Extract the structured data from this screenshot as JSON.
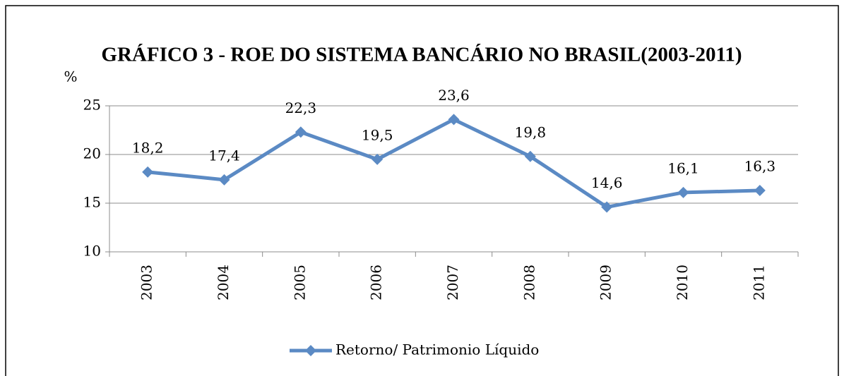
{
  "chart_data": {
    "type": "line",
    "title": "GRÁFICO 3 - ROE DO SISTEMA BANCÁRIO NO BRASIL(2003-2011)",
    "y_label": "%",
    "categories": [
      "2003",
      "2004",
      "2005",
      "2006",
      "2007",
      "2008",
      "2009",
      "2010",
      "2011"
    ],
    "series": [
      {
        "name": "Retorno/ Patrimonio Líquido",
        "color": "#5b8ac4",
        "values": [
          18.2,
          17.4,
          22.3,
          19.5,
          23.6,
          19.8,
          14.6,
          16.1,
          16.3
        ],
        "value_labels": [
          "18,2",
          "17,4",
          "22,3",
          "19,5",
          "23,6",
          "19,8",
          "14,6",
          "16,1",
          "16,3"
        ]
      }
    ],
    "ylim": [
      10,
      25
    ],
    "yticks": [
      10,
      15,
      20,
      25
    ],
    "grid": true,
    "legend": "bottom"
  }
}
